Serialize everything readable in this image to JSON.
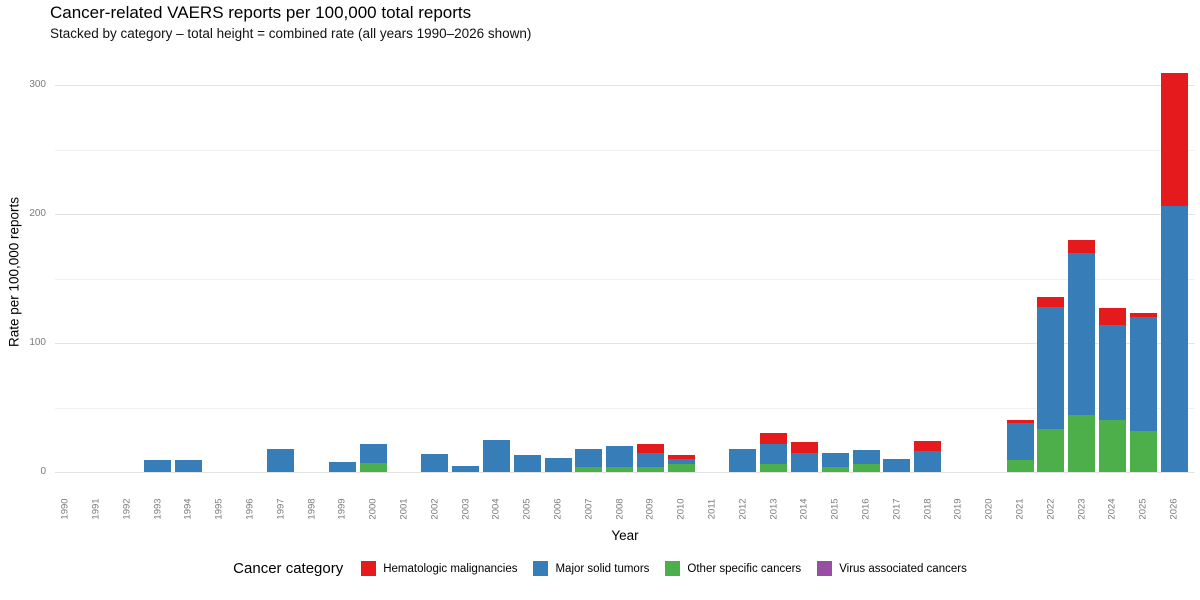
{
  "header": {
    "title": "Cancer-related VAERS reports per 100,000 total reports",
    "subtitle": "Stacked by category – total height = combined rate (all years 1990–2026 shown)"
  },
  "chart_data": {
    "type": "bar",
    "stacked": true,
    "title": "Cancer-related VAERS reports per 100,000 total reports",
    "subtitle": "Stacked by category – total height = combined rate (all years 1990–2026 shown)",
    "xlabel": "Year",
    "ylabel": "Rate per 100,000 reports",
    "ylim": [
      0,
      310
    ],
    "yticks_major": [
      0,
      100,
      200,
      300
    ],
    "yticks_minor": [
      50,
      150,
      250
    ],
    "grid": true,
    "legend_title": "Cancer category",
    "legend_position": "bottom",
    "categories": [
      "1990",
      "1991",
      "1992",
      "1993",
      "1994",
      "1995",
      "1996",
      "1997",
      "1998",
      "1999",
      "2000",
      "2001",
      "2002",
      "2003",
      "2004",
      "2005",
      "2006",
      "2007",
      "2008",
      "2009",
      "2010",
      "2011",
      "2012",
      "2013",
      "2014",
      "2015",
      "2016",
      "2017",
      "2018",
      "2019",
      "2020",
      "2021",
      "2022",
      "2023",
      "2024",
      "2025",
      "2026"
    ],
    "stack_order_bottom_to_top": [
      "Virus associated cancers",
      "Other specific cancers",
      "Major solid tumors",
      "Hematologic malignancies"
    ],
    "series": [
      {
        "name": "Hematologic malignancies",
        "color": "#e41a1c",
        "values": [
          0,
          0,
          0,
          0,
          0,
          0,
          0,
          0,
          0,
          0,
          0,
          0,
          0,
          0,
          0,
          0,
          0,
          0,
          0,
          7,
          3,
          0,
          0,
          8,
          8,
          0,
          0,
          0,
          8,
          0,
          0,
          2,
          8,
          10,
          13,
          3,
          103
        ]
      },
      {
        "name": "Major solid tumors",
        "color": "#377eb8",
        "values": [
          0,
          0,
          0,
          9,
          9,
          0,
          0,
          18,
          0,
          8,
          15,
          0,
          14,
          5,
          25,
          13,
          11,
          14,
          16,
          11,
          4,
          0,
          18,
          16,
          15,
          11,
          11,
          10,
          16,
          0,
          0,
          29,
          95,
          126,
          74,
          88,
          206
        ]
      },
      {
        "name": "Other specific cancers",
        "color": "#4daf4a",
        "values": [
          0,
          0,
          0,
          0,
          0,
          0,
          0,
          0,
          0,
          0,
          7,
          0,
          0,
          0,
          0,
          0,
          0,
          4,
          4,
          4,
          6,
          0,
          0,
          6,
          0,
          4,
          6,
          0,
          0,
          0,
          0,
          9,
          33,
          44,
          40,
          32,
          0
        ]
      },
      {
        "name": "Virus associated cancers",
        "color": "#984ea3",
        "values": [
          0,
          0,
          0,
          0,
          0,
          0,
          0,
          0,
          0,
          0,
          0,
          0,
          0,
          0,
          0,
          0,
          0,
          0,
          0,
          0,
          0,
          0,
          0,
          0,
          0,
          0,
          0,
          0,
          0,
          0,
          0,
          0,
          0,
          0,
          0,
          0,
          0
        ]
      }
    ]
  }
}
